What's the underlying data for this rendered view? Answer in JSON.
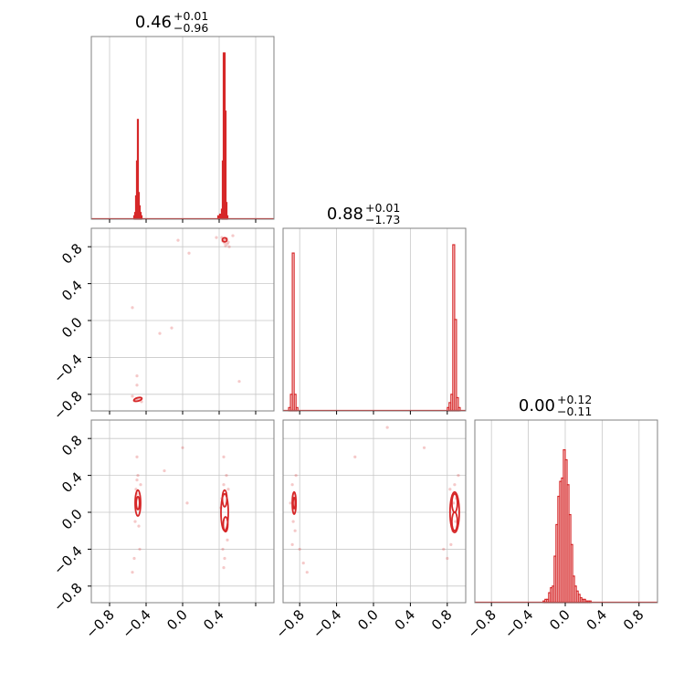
{
  "chart_data": {
    "type": "corner",
    "color": "#d62728",
    "grid": true,
    "parameters": [
      {
        "index": 0,
        "title": {
          "value": "0.46",
          "plus": "+0.01",
          "minus": "−0.96"
        }
      },
      {
        "index": 1,
        "title": {
          "value": "0.88",
          "plus": "+0.01",
          "minus": "−1.73"
        }
      },
      {
        "index": 2,
        "title": {
          "value": "0.00",
          "plus": "+0.12",
          "minus": "−0.11"
        }
      }
    ],
    "axis_ranges": {
      "p0": [
        -1.0,
        1.0
      ],
      "p1": [
        -0.98,
        1.0
      ],
      "p2": [
        -0.98,
        1.0
      ]
    },
    "ticks": [
      -0.8,
      -0.4,
      0.0,
      0.4,
      0.8
    ],
    "tick_labels": {
      "x_p0": [
        "−0.8",
        "−0.4",
        "0.0",
        "0.4"
      ],
      "x_p1": [
        "−0.8",
        "−0.4",
        "0.0",
        "0.4",
        "0.8"
      ],
      "x_p2": [
        "−0.8",
        "−0.4",
        "0.0",
        "0.4",
        "0.8"
      ],
      "y_p1": [
        "0.8",
        "0.4",
        "0.0",
        "−0.4",
        "−0.8"
      ],
      "y_p2": [
        "0.8",
        "0.4",
        "0.0",
        "−0.4",
        "−0.8"
      ]
    },
    "histograms": {
      "p0": {
        "bins": [
          [
            -0.53,
            0.02
          ],
          [
            -0.52,
            0.04
          ],
          [
            -0.51,
            0.14
          ],
          [
            -0.5,
            0.35
          ],
          [
            -0.49,
            0.6
          ],
          [
            -0.48,
            0.16
          ],
          [
            -0.47,
            0.08
          ],
          [
            -0.46,
            0.04
          ],
          [
            -0.45,
            0.02
          ],
          [
            0.39,
            0.02
          ],
          [
            0.41,
            0.03
          ],
          [
            0.43,
            0.06
          ],
          [
            0.44,
            0.35
          ],
          [
            0.45,
            1.0
          ],
          [
            0.46,
            1.0
          ],
          [
            0.47,
            0.65
          ],
          [
            0.48,
            0.1
          ],
          [
            0.49,
            0.02
          ]
        ]
      },
      "p1": {
        "bins": [
          [
            -0.91,
            0.02
          ],
          [
            -0.89,
            0.1
          ],
          [
            -0.87,
            0.95
          ],
          [
            -0.85,
            0.1
          ],
          [
            -0.83,
            0.02
          ],
          [
            0.81,
            0.02
          ],
          [
            0.83,
            0.05
          ],
          [
            0.85,
            0.1
          ],
          [
            0.87,
            1.0
          ],
          [
            0.89,
            0.55
          ],
          [
            0.91,
            0.08
          ],
          [
            0.93,
            0.02
          ]
        ]
      },
      "p2": {
        "bins": [
          [
            -0.23,
            0.01
          ],
          [
            -0.21,
            0.02
          ],
          [
            -0.19,
            0.02
          ],
          [
            -0.17,
            0.06
          ],
          [
            -0.15,
            0.09
          ],
          [
            -0.13,
            0.1
          ],
          [
            -0.11,
            0.28
          ],
          [
            -0.09,
            0.47
          ],
          [
            -0.07,
            0.64
          ],
          [
            -0.05,
            0.73
          ],
          [
            -0.03,
            0.75
          ],
          [
            -0.01,
            0.92
          ],
          [
            0.01,
            0.86
          ],
          [
            0.03,
            0.71
          ],
          [
            0.05,
            0.53
          ],
          [
            0.07,
            0.35
          ],
          [
            0.09,
            0.16
          ],
          [
            0.11,
            0.1
          ],
          [
            0.13,
            0.07
          ],
          [
            0.15,
            0.05
          ],
          [
            0.17,
            0.03
          ],
          [
            0.19,
            0.02
          ],
          [
            0.21,
            0.02
          ],
          [
            0.23,
            0.01
          ],
          [
            0.25,
            0.01
          ],
          [
            0.27,
            0.01
          ]
        ]
      }
    },
    "scatter": {
      "p0_p1": {
        "points": [
          [
            0.43,
            0.9
          ],
          [
            0.45,
            0.88
          ],
          [
            0.47,
            0.87
          ],
          [
            0.44,
            0.86
          ],
          [
            0.48,
            0.89
          ],
          [
            0.5,
            0.85
          ],
          [
            0.46,
            0.84
          ],
          [
            0.49,
            0.83
          ],
          [
            0.51,
            0.8
          ],
          [
            0.47,
            0.81
          ],
          [
            -0.05,
            0.87
          ],
          [
            0.07,
            0.73
          ],
          [
            0.37,
            0.9
          ],
          [
            0.55,
            0.92
          ],
          [
            -0.53,
            -0.87
          ],
          [
            -0.51,
            -0.85
          ],
          [
            -0.49,
            -0.86
          ],
          [
            -0.47,
            -0.84
          ],
          [
            -0.55,
            -0.82
          ],
          [
            -0.45,
            -0.88
          ],
          [
            -0.5,
            -0.7
          ],
          [
            -0.5,
            -0.6
          ],
          [
            -0.55,
            0.14
          ],
          [
            -0.25,
            -0.14
          ],
          [
            -0.12,
            -0.08
          ],
          [
            0.62,
            -0.66
          ]
        ],
        "contours": [
          {
            "cx": 0.46,
            "cy": 0.875,
            "rx": 0.025,
            "ry": 0.022
          },
          {
            "cx": -0.49,
            "cy": -0.855,
            "rx": 0.045,
            "ry": 0.018,
            "rot": -15
          }
        ]
      },
      "p0_p2": {
        "points": [
          [
            -0.51,
            0.25
          ],
          [
            -0.5,
            0.2
          ],
          [
            -0.52,
            -0.1
          ],
          [
            -0.48,
            -0.15
          ],
          [
            -0.5,
            0.35
          ],
          [
            -0.47,
            -0.4
          ],
          [
            -0.53,
            -0.5
          ],
          [
            -0.49,
            0.4
          ],
          [
            -0.55,
            -0.65
          ],
          [
            -0.46,
            0.3
          ],
          [
            0.45,
            0.3
          ],
          [
            0.47,
            -0.2
          ],
          [
            0.43,
            0.15
          ],
          [
            0.49,
            -0.3
          ],
          [
            0.44,
            -0.4
          ],
          [
            0.48,
            0.4
          ],
          [
            0.46,
            -0.5
          ],
          [
            0.42,
            0.05
          ],
          [
            0.5,
            0.25
          ],
          [
            0.45,
            -0.6
          ],
          [
            -0.5,
            0.6
          ],
          [
            0.0,
            0.7
          ],
          [
            0.45,
            0.6
          ],
          [
            -0.2,
            0.45
          ],
          [
            0.05,
            0.1
          ]
        ],
        "contours": [
          {
            "cx": -0.49,
            "cy": 0.1,
            "rx": 0.03,
            "ry": 0.14
          },
          {
            "cx": -0.49,
            "cy": 0.1,
            "rx": 0.018,
            "ry": 0.07
          },
          {
            "cx": 0.46,
            "cy": 0.15,
            "rx": 0.025,
            "ry": 0.09
          },
          {
            "cx": 0.47,
            "cy": -0.13,
            "rx": 0.025,
            "ry": 0.08
          },
          {
            "cx": 0.46,
            "cy": 0.0,
            "rx": 0.04,
            "ry": 0.2
          }
        ]
      },
      "p1_p2": {
        "points": [
          [
            -0.88,
            0.3
          ],
          [
            -0.86,
            0.2
          ],
          [
            -0.87,
            -0.1
          ],
          [
            -0.85,
            -0.2
          ],
          [
            -0.88,
            -0.35
          ],
          [
            -0.84,
            0.4
          ],
          [
            -0.8,
            -0.4
          ],
          [
            -0.76,
            -0.55
          ],
          [
            -0.72,
            -0.65
          ],
          [
            -0.9,
            0.1
          ],
          [
            0.88,
            0.3
          ],
          [
            0.86,
            -0.2
          ],
          [
            0.9,
            0.15
          ],
          [
            0.84,
            -0.35
          ],
          [
            0.92,
            0.4
          ],
          [
            0.8,
            -0.5
          ],
          [
            0.76,
            -0.4
          ],
          [
            0.89,
            -0.1
          ],
          [
            0.83,
            0.25
          ],
          [
            0.87,
            0.1
          ],
          [
            0.15,
            0.92
          ],
          [
            -0.2,
            0.6
          ],
          [
            0.55,
            0.7
          ]
        ],
        "contours": [
          {
            "cx": -0.86,
            "cy": 0.1,
            "rx": 0.02,
            "ry": 0.12
          },
          {
            "cx": -0.86,
            "cy": 0.1,
            "rx": 0.012,
            "ry": 0.06
          },
          {
            "cx": 0.88,
            "cy": 0.1,
            "rx": 0.03,
            "ry": 0.1
          },
          {
            "cx": 0.88,
            "cy": -0.1,
            "rx": 0.03,
            "ry": 0.1
          },
          {
            "cx": 0.88,
            "cy": 0.0,
            "rx": 0.05,
            "ry": 0.22
          }
        ]
      }
    }
  }
}
